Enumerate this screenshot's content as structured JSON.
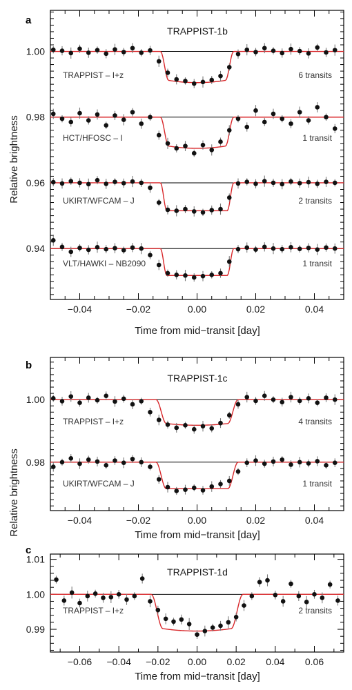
{
  "chart_data": [
    {
      "type": "scatter",
      "panel": "a",
      "title": "TRAPPIST-1b",
      "xlabel": "Time from mid−transit [day]",
      "ylabel": "Relative brightness",
      "xlim": [
        -0.05,
        0.05
      ],
      "ylim": [
        0.9245,
        1.0125
      ],
      "xticks": [
        -0.04,
        -0.02,
        0.0,
        0.02,
        0.04
      ],
      "xtick_labels": [
        "−0.04",
        "−0.02",
        "0.00",
        "0.02",
        "0.04"
      ],
      "yticks": [
        0.94,
        0.96,
        0.98,
        1.0
      ],
      "ytick_labels": [
        "0.94",
        "0.96",
        "0.98",
        "1.00"
      ],
      "grid": false,
      "series": [
        {
          "name": "TRAPPIST – I+z",
          "note": "6 transits",
          "baseline": 1.0,
          "depth": 0.0095,
          "t_half": 0.0125,
          "ingress": 0.0028,
          "shape": "u",
          "x": [
            -0.049,
            -0.046,
            -0.043,
            -0.04,
            -0.037,
            -0.034,
            -0.031,
            -0.028,
            -0.025,
            -0.022,
            -0.019,
            -0.016,
            -0.013,
            -0.01,
            -0.007,
            -0.004,
            -0.001,
            0.002,
            0.005,
            0.008,
            0.011,
            0.014,
            0.017,
            0.02,
            0.023,
            0.026,
            0.029,
            0.032,
            0.035,
            0.038,
            0.041,
            0.044,
            0.047
          ],
          "y": [
            1.0005,
            1.0002,
            0.9995,
            1.0008,
            0.9996,
            1.0004,
            0.9993,
            1.0006,
            0.9998,
            1.001,
            0.9996,
            1.0003,
            0.997,
            0.9935,
            0.9915,
            0.991,
            0.9902,
            0.9907,
            0.9913,
            0.9925,
            0.9952,
            0.9992,
            1.0005,
            0.9998,
            1.001,
            1.0002,
            0.9995,
            1.0007,
            1.0001,
            0.9994,
            1.0012,
            0.9997,
            1.0004
          ]
        },
        {
          "name": "HCT/HFOSC – I",
          "note": "1 transit",
          "baseline": 0.98,
          "depth": 0.0095,
          "t_half": 0.0125,
          "ingress": 0.0028,
          "shape": "u",
          "x": [
            -0.049,
            -0.046,
            -0.043,
            -0.04,
            -0.037,
            -0.034,
            -0.031,
            -0.028,
            -0.025,
            -0.022,
            -0.019,
            -0.016,
            -0.013,
            -0.01,
            -0.007,
            -0.004,
            -0.001,
            0.002,
            0.005,
            0.008,
            0.011,
            0.014,
            0.017,
            0.02,
            0.023,
            0.026,
            0.029,
            0.032,
            0.035,
            0.038,
            0.041,
            0.044,
            0.047
          ],
          "y": [
            0.981,
            0.9795,
            0.9785,
            0.9812,
            0.979,
            0.9808,
            0.9775,
            0.9805,
            0.9792,
            0.9815,
            0.978,
            0.98,
            0.9745,
            0.972,
            0.9705,
            0.9712,
            0.969,
            0.9715,
            0.97,
            0.9725,
            0.976,
            0.9795,
            0.977,
            0.982,
            0.9785,
            0.981,
            0.9795,
            0.978,
            0.9815,
            0.979,
            0.983,
            0.98,
            0.9765
          ]
        },
        {
          "name": "UKIRT/WFCAM – J",
          "note": "2 transits",
          "baseline": 0.96,
          "depth": 0.0085,
          "t_half": 0.0125,
          "ingress": 0.0022,
          "shape": "flat",
          "x": [
            -0.049,
            -0.046,
            -0.043,
            -0.04,
            -0.037,
            -0.034,
            -0.031,
            -0.028,
            -0.025,
            -0.022,
            -0.019,
            -0.016,
            -0.013,
            -0.01,
            -0.007,
            -0.004,
            -0.001,
            0.002,
            0.005,
            0.008,
            0.011,
            0.014,
            0.017,
            0.02,
            0.023,
            0.026,
            0.029,
            0.032,
            0.035,
            0.038,
            0.041,
            0.044,
            0.047
          ],
          "y": [
            0.9602,
            0.9598,
            0.9605,
            0.96,
            0.9596,
            0.9608,
            0.9597,
            0.9603,
            0.9599,
            0.9604,
            0.96,
            0.9585,
            0.954,
            0.9518,
            0.9515,
            0.952,
            0.9513,
            0.951,
            0.9517,
            0.952,
            0.9555,
            0.9598,
            0.9603,
            0.9597,
            0.9605,
            0.96,
            0.9596,
            0.9604,
            0.9599,
            0.9602,
            0.9597,
            0.9603,
            0.96
          ]
        },
        {
          "name": "VLT/HAWKI – NB2090",
          "note": "1 transit",
          "baseline": 0.94,
          "depth": 0.0082,
          "t_half": 0.0125,
          "ingress": 0.0022,
          "shape": "flat",
          "x": [
            -0.049,
            -0.046,
            -0.043,
            -0.04,
            -0.037,
            -0.034,
            -0.031,
            -0.028,
            -0.025,
            -0.022,
            -0.019,
            -0.016,
            -0.013,
            -0.01,
            -0.007,
            -0.004,
            -0.001,
            0.002,
            0.005,
            0.008,
            0.011,
            0.014,
            0.017,
            0.02,
            0.023,
            0.026,
            0.029,
            0.032,
            0.035,
            0.038,
            0.041,
            0.044,
            0.047
          ],
          "y": [
            0.9425,
            0.9405,
            0.939,
            0.9402,
            0.9396,
            0.9404,
            0.9398,
            0.9401,
            0.9395,
            0.9403,
            0.94,
            0.938,
            0.935,
            0.9325,
            0.932,
            0.9318,
            0.9312,
            0.9316,
            0.932,
            0.9325,
            0.936,
            0.9398,
            0.9403,
            0.9397,
            0.9405,
            0.94,
            0.9398,
            0.9404,
            0.9399,
            0.9402,
            0.9397,
            0.9403,
            0.94
          ]
        }
      ]
    },
    {
      "type": "scatter",
      "panel": "b",
      "title": "TRAPPIST-1c",
      "xlabel": "Time from mid−transit [day]",
      "ylabel": "Relative brightness",
      "xlim": [
        -0.05,
        0.05
      ],
      "ylim": [
        0.9645,
        1.0135
      ],
      "xticks": [
        -0.04,
        -0.02,
        0.0,
        0.02,
        0.04
      ],
      "xtick_labels": [
        "−0.04",
        "−0.02",
        "0.00",
        "0.02",
        "0.04"
      ],
      "yticks": [
        0.98,
        1.0
      ],
      "ytick_labels": [
        "0.98",
        "1.00"
      ],
      "grid": false,
      "series": [
        {
          "name": "TRAPPIST – I+z",
          "note": "4 transits",
          "baseline": 1.0,
          "depth": 0.0082,
          "t_half": 0.014,
          "ingress": 0.0035,
          "shape": "u",
          "x": [
            -0.049,
            -0.046,
            -0.043,
            -0.04,
            -0.037,
            -0.034,
            -0.031,
            -0.028,
            -0.025,
            -0.022,
            -0.019,
            -0.016,
            -0.013,
            -0.01,
            -0.007,
            -0.004,
            -0.001,
            0.002,
            0.005,
            0.008,
            0.011,
            0.014,
            0.017,
            0.02,
            0.023,
            0.026,
            0.029,
            0.032,
            0.035,
            0.038,
            0.041,
            0.044,
            0.047
          ],
          "y": [
            1.0004,
            0.9995,
            1.001,
            0.999,
            1.0006,
            0.9998,
            1.0012,
            0.9994,
            1.0003,
            0.9985,
            0.9995,
            0.996,
            0.9935,
            0.992,
            0.991,
            0.9918,
            0.9905,
            0.9915,
            0.9908,
            0.9925,
            0.995,
            0.9985,
            1.0008,
            0.9996,
            1.0012,
            1.0,
            0.9992,
            1.0008,
            0.9996,
            1.0004,
            0.999,
            1.0006,
            1.0
          ]
        },
        {
          "name": "UKIRT/WFCAM – J",
          "note": "1 transit",
          "baseline": 0.98,
          "depth": 0.0085,
          "t_half": 0.014,
          "ingress": 0.0035,
          "shape": "flat",
          "x": [
            -0.049,
            -0.046,
            -0.043,
            -0.04,
            -0.037,
            -0.034,
            -0.031,
            -0.028,
            -0.025,
            -0.022,
            -0.019,
            -0.016,
            -0.013,
            -0.01,
            -0.007,
            -0.004,
            -0.001,
            0.002,
            0.005,
            0.008,
            0.011,
            0.014,
            0.017,
            0.02,
            0.023,
            0.026,
            0.029,
            0.032,
            0.035,
            0.038,
            0.041,
            0.044,
            0.047
          ],
          "y": [
            0.9785,
            0.98,
            0.9812,
            0.9795,
            0.9808,
            0.9802,
            0.979,
            0.9805,
            0.9798,
            0.981,
            0.98,
            0.9785,
            0.9745,
            0.972,
            0.9708,
            0.9712,
            0.9718,
            0.971,
            0.9722,
            0.973,
            0.974,
            0.977,
            0.9798,
            0.9805,
            0.9795,
            0.9802,
            0.9808,
            0.9792,
            0.98,
            0.9796,
            0.9803,
            0.979,
            0.9798
          ]
        }
      ]
    },
    {
      "type": "scatter",
      "panel": "c",
      "title": "TRAPPIST-1d",
      "xlabel": "Time from mid−transit [day]",
      "ylabel": "Relative brightness",
      "xlim": [
        -0.075,
        0.075
      ],
      "ylim": [
        0.9835,
        1.0115
      ],
      "xticks": [
        -0.06,
        -0.04,
        -0.02,
        0.0,
        0.02,
        0.04,
        0.06
      ],
      "xtick_labels": [
        "−0.06",
        "−0.04",
        "−0.02",
        "0.00",
        "0.02",
        "0.04",
        "0.06"
      ],
      "yticks": [
        0.99,
        1.0,
        1.01
      ],
      "ytick_labels": [
        "0.99",
        "1.00",
        "1.01"
      ],
      "grid": false,
      "series": [
        {
          "name": "TRAPPIST – I+z",
          "note": "2 transits",
          "baseline": 1.0,
          "depth": 0.0105,
          "t_half": 0.0235,
          "ingress": 0.006,
          "shape": "u",
          "x": [
            -0.072,
            -0.068,
            -0.064,
            -0.06,
            -0.056,
            -0.052,
            -0.048,
            -0.044,
            -0.04,
            -0.036,
            -0.032,
            -0.028,
            -0.024,
            -0.02,
            -0.016,
            -0.012,
            -0.008,
            -0.004,
            0.0,
            0.004,
            0.008,
            0.012,
            0.016,
            0.02,
            0.024,
            0.028,
            0.032,
            0.036,
            0.04,
            0.044,
            0.048,
            0.052,
            0.056,
            0.06,
            0.064,
            0.068,
            0.072
          ],
          "y": [
            1.0042,
            0.9982,
            1.0005,
            0.9975,
            0.9995,
            1.0002,
            0.999,
            0.9992,
            1.0,
            0.9985,
            0.9995,
            1.0045,
            0.998,
            0.9955,
            0.993,
            0.9922,
            0.9928,
            0.9915,
            0.9885,
            0.9895,
            0.9905,
            0.991,
            0.992,
            0.9935,
            0.9968,
            0.9995,
            1.0035,
            1.004,
            0.9998,
            0.998,
            1.003,
            0.9995,
            0.9978,
            1.0,
            0.999,
            1.0028,
            0.9982
          ]
        }
      ]
    }
  ]
}
